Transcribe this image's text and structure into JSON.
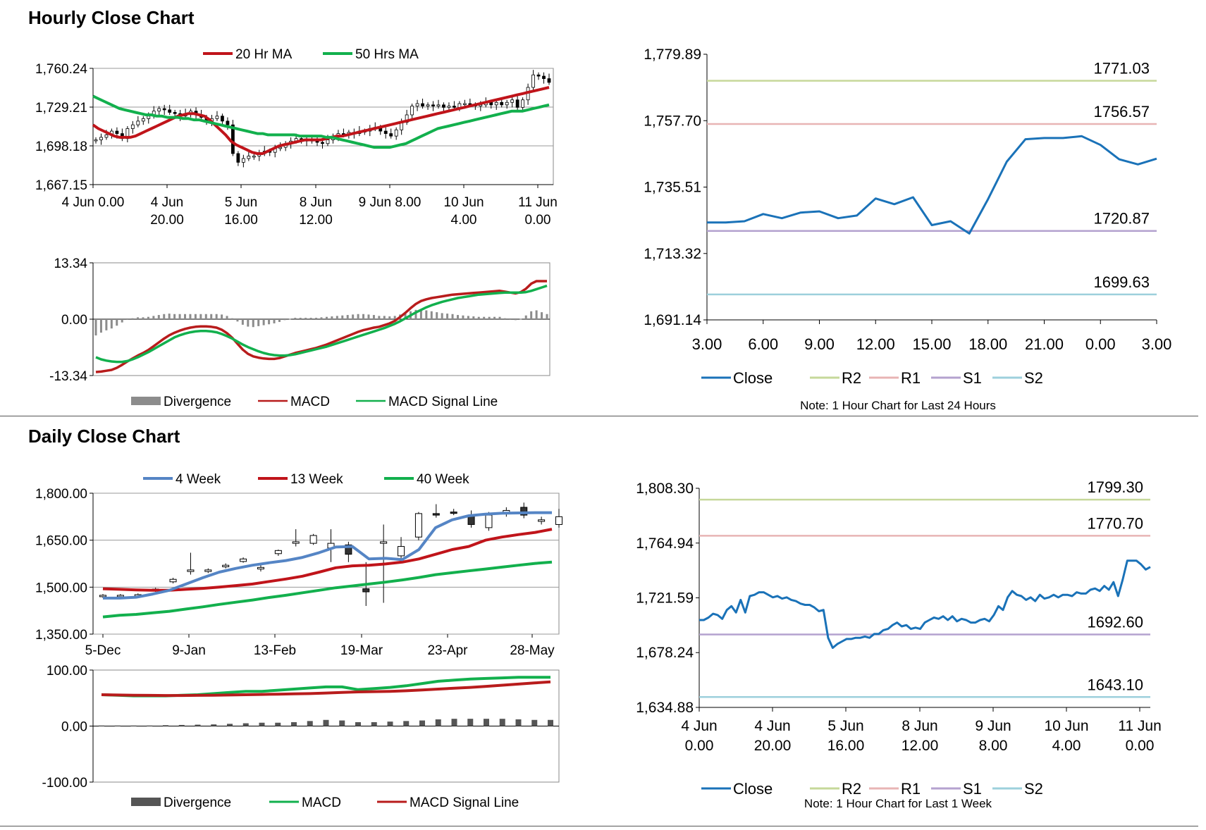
{
  "sections": {
    "hourly_title": "Hourly Close Chart",
    "daily_title": "Daily Close Chart"
  },
  "colors": {
    "ma20": "#c0141a",
    "ma50": "#12b04d",
    "w4": "#5585c5",
    "w13": "#c0141a",
    "w40": "#12b04d",
    "macd_red": "#b81c1c",
    "macd_green": "#12b04d",
    "close": "#1a72b8",
    "r2": "#c6d89a",
    "r1": "#e8b4b4",
    "s1": "#b4a2cf",
    "s2": "#9dd0dc",
    "divergence": "#8c8c8c",
    "divergence_dark": "#555555"
  },
  "chart_data": [
    {
      "id": "hourly-candles",
      "type": "candlestick",
      "legend": [
        "20 Hr MA",
        "50 Hrs MA"
      ],
      "ylim": [
        1667.15,
        1760.24
      ],
      "y_ticks": [
        "1,760.24",
        "1,729.21",
        "1,698.18",
        "1,667.15"
      ],
      "y_tick_values": [
        1760.24,
        1729.21,
        1698.18,
        1667.15
      ],
      "x_ticks": [
        [
          "4 Jun 0.00",
          ""
        ],
        [
          "4 Jun",
          "20.00"
        ],
        [
          "5 Jun",
          "16.00"
        ],
        [
          "8 Jun",
          "12.00"
        ],
        [
          "9 Jun 8.00",
          ""
        ],
        [
          "10 Jun",
          "4.00"
        ],
        [
          "11 Jun",
          "0.00"
        ]
      ],
      "close": [
        1703,
        1705,
        1707,
        1710,
        1708,
        1704,
        1712,
        1715,
        1718,
        1720,
        1722,
        1726,
        1728,
        1727,
        1725,
        1724,
        1722,
        1724,
        1726,
        1723,
        1721,
        1718,
        1720,
        1722,
        1718,
        1715,
        1692,
        1685,
        1688,
        1690,
        1690,
        1692,
        1694,
        1693,
        1696,
        1697,
        1700,
        1702,
        1704,
        1703,
        1702,
        1703,
        1701,
        1700,
        1703,
        1706,
        1708,
        1707,
        1709,
        1708,
        1710,
        1710,
        1712,
        1713,
        1710,
        1708,
        1706,
        1711,
        1717,
        1723,
        1730,
        1732,
        1730,
        1731,
        1730,
        1731,
        1729,
        1730,
        1729,
        1732,
        1732,
        1731,
        1730,
        1731,
        1733,
        1731,
        1733,
        1731,
        1733,
        1735,
        1729,
        1735,
        1745,
        1755,
        1754,
        1752,
        1749
      ],
      "ma20": [
        1715,
        1712,
        1710,
        1708,
        1706,
        1705,
        1705,
        1705,
        1706,
        1708,
        1710,
        1712,
        1714,
        1716,
        1718,
        1720,
        1722,
        1723,
        1724,
        1724,
        1723,
        1722,
        1719,
        1715,
        1711,
        1707,
        1702,
        1699,
        1697,
        1695,
        1693,
        1692,
        1692,
        1694,
        1696,
        1698,
        1699,
        1700,
        1701,
        1702,
        1703,
        1703,
        1703,
        1703,
        1704,
        1705,
        1706,
        1706,
        1707,
        1708,
        1709,
        1710,
        1711,
        1712,
        1713,
        1714,
        1715,
        1716,
        1717,
        1718,
        1719,
        1720,
        1721,
        1722,
        1723,
        1724,
        1725,
        1726,
        1727,
        1728,
        1729,
        1730,
        1731,
        1732,
        1733,
        1734,
        1735,
        1736,
        1737,
        1738,
        1739,
        1740,
        1741,
        1742,
        1743,
        1744,
        1745
      ],
      "ma50": [
        1738,
        1736,
        1734,
        1732,
        1730,
        1728,
        1727,
        1726,
        1725,
        1724,
        1723,
        1723,
        1722,
        1722,
        1721,
        1721,
        1721,
        1720,
        1720,
        1719,
        1719,
        1718,
        1717,
        1716,
        1715,
        1714,
        1713,
        1712,
        1711,
        1710,
        1709,
        1708,
        1708,
        1707,
        1707,
        1707,
        1707,
        1707,
        1707,
        1706,
        1706,
        1706,
        1706,
        1706,
        1705,
        1705,
        1704,
        1703,
        1702,
        1701,
        1700,
        1699,
        1698,
        1697,
        1697,
        1697,
        1697,
        1698,
        1699,
        1700,
        1702,
        1704,
        1706,
        1708,
        1710,
        1712,
        1713,
        1714,
        1715,
        1716,
        1717,
        1718,
        1719,
        1720,
        1721,
        1722,
        1723,
        1724,
        1725,
        1726,
        1726,
        1726,
        1727,
        1728,
        1729,
        1730,
        1731
      ]
    },
    {
      "id": "hourly-macd",
      "type": "macd",
      "legend": [
        "Divergence",
        "MACD",
        "MACD Signal Line"
      ],
      "ylim": [
        -13.34,
        13.34
      ],
      "y_ticks": [
        "13.34",
        "0.00",
        "-13.34"
      ],
      "y_tick_values": [
        13.34,
        0,
        -13.34
      ],
      "macd": [
        -12.5,
        -12.4,
        -12.2,
        -12,
        -11.5,
        -10.8,
        -10,
        -9.3,
        -8.6,
        -8,
        -7.3,
        -6.4,
        -5.5,
        -4.6,
        -3.8,
        -3.2,
        -2.7,
        -2.3,
        -2,
        -1.8,
        -1.7,
        -1.7,
        -1.8,
        -2,
        -2.5,
        -3.3,
        -4.4,
        -5.8,
        -7.2,
        -8.2,
        -8.8,
        -9.1,
        -9.3,
        -9.4,
        -9.4,
        -9.2,
        -8.8,
        -8.4,
        -8,
        -7.7,
        -7.4,
        -7.1,
        -6.8,
        -6.4,
        -6,
        -5.5,
        -5,
        -4.5,
        -4,
        -3.5,
        -3,
        -2.6,
        -2.3,
        -2,
        -1.8,
        -1.4,
        -1,
        -0.4,
        0.5,
        1.5,
        2.6,
        3.6,
        4.3,
        4.7,
        5,
        5.2,
        5.4,
        5.6,
        5.8,
        5.9,
        6,
        6.1,
        6.2,
        6.3,
        6.4,
        6.5,
        6.6,
        6.7,
        6.5,
        6.3,
        6.1,
        6.4,
        7.2,
        8.4,
        9,
        9,
        9
      ],
      "signal": [
        -9,
        -9.5,
        -9.8,
        -10,
        -10.1,
        -10.1,
        -9.9,
        -9.5,
        -9,
        -8.4,
        -7.8,
        -7.1,
        -6.4,
        -5.7,
        -5,
        -4.3,
        -3.8,
        -3.4,
        -3.1,
        -2.9,
        -2.8,
        -2.8,
        -2.9,
        -3.1,
        -3.5,
        -4,
        -4.6,
        -5.3,
        -6,
        -6.6,
        -7.1,
        -7.6,
        -8,
        -8.3,
        -8.5,
        -8.6,
        -8.6,
        -8.5,
        -8.3,
        -8,
        -7.7,
        -7.4,
        -7.1,
        -6.8,
        -6.5,
        -6.1,
        -5.7,
        -5.3,
        -4.9,
        -4.5,
        -4.1,
        -3.7,
        -3.3,
        -2.9,
        -2.5,
        -2.1,
        -1.6,
        -1.1,
        -0.5,
        0.2,
        0.9,
        1.6,
        2.2,
        2.8,
        3.3,
        3.7,
        4.1,
        4.4,
        4.7,
        5,
        5.2,
        5.4,
        5.6,
        5.8,
        5.9,
        6,
        6.1,
        6.2,
        6.3,
        6.3,
        6.3,
        6.3,
        6.4,
        6.7,
        7.1,
        7.5,
        7.9
      ]
    },
    {
      "id": "hourly-24h",
      "type": "line",
      "legend": [
        "Close",
        "R2",
        "R1",
        "S1",
        "S2"
      ],
      "note": "Note: 1 Hour Chart for Last 24 Hours",
      "ylim": [
        1691.14,
        1779.89
      ],
      "y_ticks": [
        "1,779.89",
        "1,757.70",
        "1,735.51",
        "1,713.32",
        "1,691.14"
      ],
      "y_tick_values": [
        1779.89,
        1757.7,
        1735.51,
        1713.32,
        1691.14
      ],
      "x_ticks": [
        "3.00",
        "6.00",
        "9.00",
        "12.00",
        "15.00",
        "18.00",
        "21.00",
        "0.00",
        "3.00"
      ],
      "close": [
        1723.7,
        1723.7,
        1724.1,
        1726.5,
        1725.1,
        1727.0,
        1727.4,
        1725.1,
        1726.0,
        1731.7,
        1729.8,
        1732.1,
        1722.8,
        1724.1,
        1720.0,
        1731.5,
        1744.0,
        1751.5,
        1751.9,
        1751.9,
        1752.5,
        1749.6,
        1744.8,
        1743.1,
        1745.0
      ],
      "levels": {
        "R2": 1771.03,
        "R1": 1756.57,
        "S1": 1720.87,
        "S2": 1699.63
      },
      "level_labels": {
        "R2": "1771.03",
        "R1": "1756.57",
        "S1": "1720.87",
        "S2": "1699.63"
      }
    },
    {
      "id": "daily-candles",
      "type": "candlestick",
      "legend": [
        "4 Week",
        "13 Week",
        "40 Week"
      ],
      "ylim": [
        1350,
        1800
      ],
      "y_ticks": [
        "1,800.00",
        "1,650.00",
        "1,500.00",
        "1,350.00"
      ],
      "y_tick_values": [
        1800,
        1650,
        1500,
        1350
      ],
      "x_ticks": [
        "5-Dec",
        "9-Jan",
        "13-Feb",
        "19-Mar",
        "23-Apr",
        "28-May"
      ],
      "week4": [
        1465,
        1465,
        1468,
        1478,
        1490,
        1510,
        1530,
        1548,
        1560,
        1570,
        1578,
        1585,
        1595,
        1610,
        1628,
        1630,
        1590,
        1592,
        1588,
        1620,
        1690,
        1715,
        1728,
        1733,
        1736,
        1737,
        1738,
        1738
      ],
      "week13": [
        1495,
        1493,
        1491,
        1490,
        1490,
        1493,
        1496,
        1500,
        1505,
        1510,
        1518,
        1526,
        1535,
        1548,
        1562,
        1568,
        1570,
        1574,
        1580,
        1590,
        1605,
        1620,
        1630,
        1650,
        1660,
        1668,
        1675,
        1685
      ],
      "week40": [
        1405,
        1410,
        1413,
        1418,
        1423,
        1430,
        1437,
        1445,
        1452,
        1459,
        1467,
        1474,
        1482,
        1490,
        1498,
        1504,
        1510,
        1516,
        1523,
        1531,
        1540,
        1546,
        1552,
        1558,
        1564,
        1570,
        1576,
        1580
      ],
      "candles": [
        [
          1470,
          1474,
          1478,
          1466
        ],
        [
          1471,
          1474,
          1478,
          1466
        ],
        [
          1474,
          1476,
          1480,
          1469
        ],
        [
          1488,
          1494,
          1498,
          1485
        ],
        [
          1517,
          1525,
          1530,
          1512
        ],
        [
          1550,
          1555,
          1610,
          1540
        ],
        [
          1550,
          1555,
          1560,
          1545
        ],
        [
          1565,
          1570,
          1576,
          1560
        ],
        [
          1582,
          1590,
          1595,
          1578
        ],
        [
          1558,
          1563,
          1570,
          1550
        ],
        [
          1607,
          1617,
          1620,
          1600
        ],
        [
          1640,
          1645,
          1685,
          1630
        ],
        [
          1640,
          1665,
          1670,
          1635
        ],
        [
          1625,
          1640,
          1685,
          1580
        ],
        [
          1635,
          1605,
          1645,
          1580
        ],
        [
          1495,
          1485,
          1580,
          1440
        ],
        [
          1640,
          1645,
          1700,
          1450
        ],
        [
          1600,
          1630,
          1660,
          1590
        ],
        [
          1660,
          1735,
          1740,
          1650
        ],
        [
          1735,
          1730,
          1765,
          1722
        ],
        [
          1740,
          1738,
          1750,
          1730
        ],
        [
          1730,
          1700,
          1745,
          1690
        ],
        [
          1690,
          1730,
          1740,
          1680
        ],
        [
          1735,
          1745,
          1755,
          1725
        ],
        [
          1755,
          1730,
          1770,
          1720
        ],
        [
          1710,
          1715,
          1725,
          1700
        ],
        [
          1700,
          1725,
          1750,
          1690
        ]
      ]
    },
    {
      "id": "daily-macd",
      "type": "macd",
      "legend": [
        "Divergence",
        "MACD",
        "MACD Signal Line"
      ],
      "ylim": [
        -100,
        100
      ],
      "y_ticks": [
        "100.00",
        "0.00",
        "-100.00"
      ],
      "y_tick_values": [
        100,
        0,
        -100
      ],
      "macd": [
        56,
        55,
        54,
        54,
        54,
        55,
        56,
        58,
        60,
        62,
        62,
        64,
        66,
        68,
        70,
        70,
        65,
        67,
        69,
        72,
        76,
        80,
        82,
        84,
        85,
        86,
        87,
        87,
        87
      ],
      "signal": [
        56,
        55.5,
        55,
        54.8,
        54.6,
        54.6,
        54.8,
        55,
        55.5,
        56,
        56.5,
        57,
        57.5,
        58,
        59,
        60,
        61,
        61.5,
        62,
        63,
        64.5,
        66,
        67.5,
        69,
        71,
        73,
        75,
        77,
        79
      ],
      "divergence": [
        1,
        1,
        1,
        1,
        1.5,
        2,
        2.5,
        3,
        4,
        5,
        6,
        6,
        7,
        9,
        11,
        10,
        7,
        7,
        8,
        9,
        10,
        12,
        13,
        13,
        13,
        13,
        12,
        11,
        11
      ]
    },
    {
      "id": "daily-week",
      "type": "line",
      "legend": [
        "Close",
        "R2",
        "R1",
        "S1",
        "S2"
      ],
      "note": "Note: 1 Hour Chart for Last 1 Week",
      "ylim": [
        1634.88,
        1808.3
      ],
      "y_ticks": [
        "1,808.30",
        "1,764.94",
        "1,721.59",
        "1,678.24",
        "1,634.88"
      ],
      "y_tick_values": [
        1808.3,
        1764.94,
        1721.59,
        1678.24,
        1634.88
      ],
      "x_ticks": [
        [
          "4 Jun",
          "0.00"
        ],
        [
          "4 Jun",
          "20.00"
        ],
        [
          "5 Jun",
          "16.00"
        ],
        [
          "8 Jun",
          "12.00"
        ],
        [
          "9 Jun",
          "8.00"
        ],
        [
          "10 Jun",
          "4.00"
        ],
        [
          "11 Jun",
          "0.00"
        ]
      ],
      "close": [
        1704,
        1704,
        1706,
        1709,
        1708,
        1705,
        1712,
        1715,
        1710,
        1720,
        1710,
        1723,
        1724,
        1726,
        1726,
        1724,
        1722,
        1723,
        1721,
        1722,
        1720,
        1719,
        1717,
        1716,
        1716,
        1714,
        1711,
        1712,
        1690,
        1682,
        1685,
        1687,
        1689,
        1689,
        1690,
        1690,
        1691,
        1690,
        1693,
        1693,
        1696,
        1697,
        1700,
        1702,
        1699,
        1700,
        1697,
        1698,
        1697,
        1702,
        1704,
        1706,
        1705,
        1707,
        1704,
        1707,
        1703,
        1705,
        1704,
        1702,
        1702,
        1704,
        1705,
        1703,
        1708,
        1715,
        1712,
        1722,
        1727,
        1724,
        1723,
        1720,
        1722,
        1719,
        1724,
        1721,
        1722,
        1724,
        1722,
        1724,
        1724,
        1723,
        1726,
        1725,
        1725,
        1728,
        1729,
        1727,
        1731,
        1728,
        1734,
        1723,
        1736,
        1751,
        1751,
        1751,
        1748,
        1744,
        1746
      ],
      "levels": {
        "R2": 1799.3,
        "R1": 1770.7,
        "S1": 1692.6,
        "S2": 1643.1
      },
      "level_labels": {
        "R2": "1799.30",
        "R1": "1770.70",
        "S1": "1692.60",
        "S2": "1643.10"
      }
    }
  ]
}
